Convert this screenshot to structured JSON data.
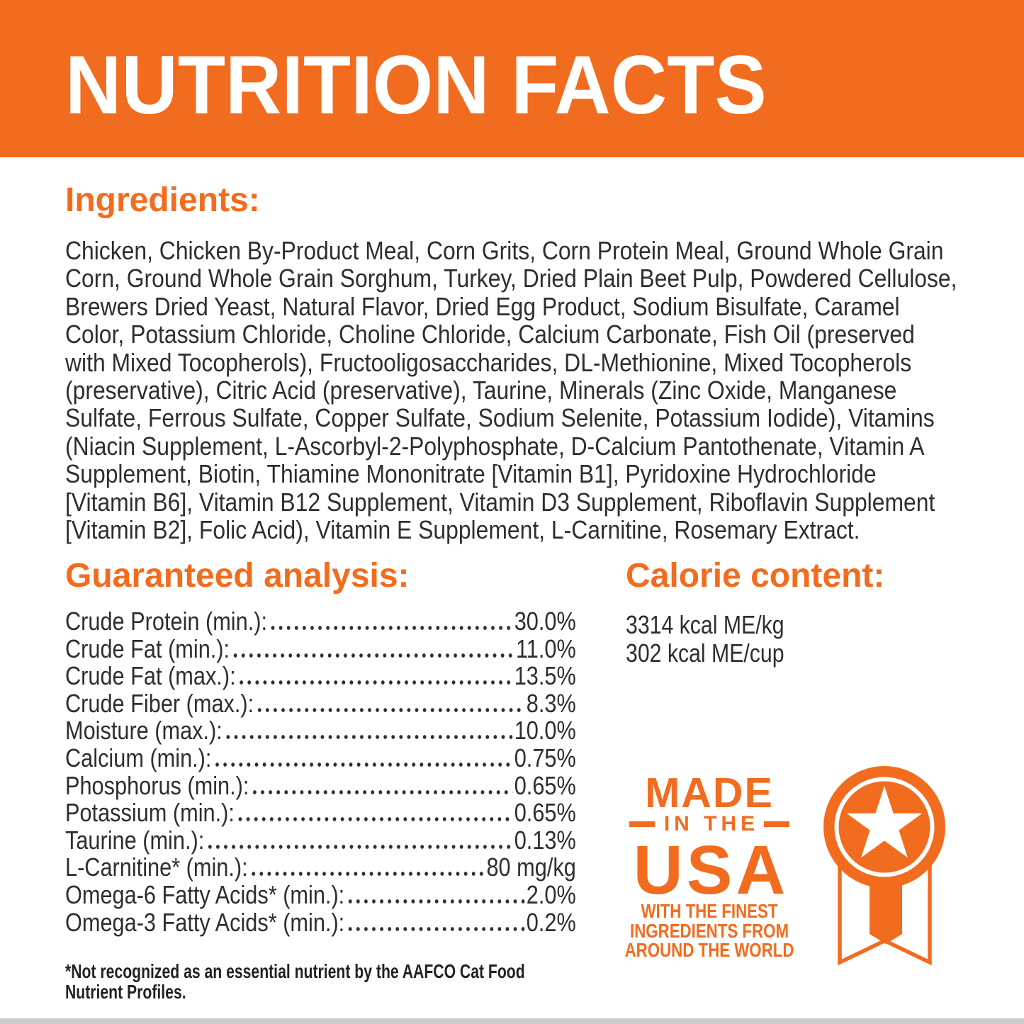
{
  "page": {
    "accent_color": "#F26C1F",
    "text_color": "#2E2E2E"
  },
  "header": {
    "title": "NUTRITION FACTS"
  },
  "ingredients": {
    "heading": "Ingredients:",
    "lines": [
      "Chicken, Chicken By-Product Meal, Corn Grits, Corn Protein Meal, Ground Whole Grain",
      "Corn, Ground Whole Grain Sorghum, Turkey, Dried Plain Beet Pulp, Powdered Cellulose,",
      "Brewers Dried Yeast, Natural Flavor, Dried Egg Product, Sodium Bisulfate, Caramel",
      "Color, Potassium Chloride, Choline Chloride, Calcium Carbonate, Fish Oil (preserved",
      "with Mixed Tocopherols), Fructooligosaccharides, DL-Methionine, Mixed Tocopherols",
      "(preservative), Citric Acid (preservative), Taurine, Minerals (Zinc Oxide, Manganese",
      "Sulfate, Ferrous Sulfate, Copper Sulfate, Sodium Selenite, Potassium Iodide), Vitamins",
      "(Niacin Supplement, L-Ascorbyl-2-Polyphosphate, D-Calcium Pantothenate, Vitamin A",
      "Supplement, Biotin, Thiamine Mononitrate [Vitamin B1], Pyridoxine Hydrochloride",
      "[Vitamin B6], Vitamin B12 Supplement, Vitamin D3 Supplement, Riboflavin Supplement",
      "[Vitamin B2], Folic Acid), Vitamin E Supplement, L-Carnitine, Rosemary Extract."
    ]
  },
  "guaranteed_analysis": {
    "heading": "Guaranteed analysis:",
    "rows": [
      {
        "label": "Crude Protein (min.):",
        "value": "30.0%"
      },
      {
        "label": "Crude Fat (min.):",
        "value": "11.0%"
      },
      {
        "label": "Crude Fat (max.):",
        "value": "13.5%"
      },
      {
        "label": "Crude Fiber (max.):",
        "value": "8.3%"
      },
      {
        "label": "Moisture (max.):",
        "value": "10.0%"
      },
      {
        "label": "Calcium (min.):",
        "value": "0.75%"
      },
      {
        "label": "Phosphorus (min.):",
        "value": "0.65%"
      },
      {
        "label": "Potassium (min.):",
        "value": "0.65%"
      },
      {
        "label": "Taurine (min.):",
        "value": "0.13%"
      },
      {
        "label": "L-Carnitine* (min.):",
        "value": "80 mg/kg"
      },
      {
        "label": "Omega-6 Fatty Acids* (min.):",
        "value": "2.0%"
      },
      {
        "label": "Omega-3 Fatty Acids* (min.):",
        "value": "0.2%"
      }
    ]
  },
  "calorie_content": {
    "heading": "Calorie content:",
    "lines": [
      "3314 kcal ME/kg",
      "302 kcal ME/cup"
    ]
  },
  "made_in_usa": {
    "line1": "MADE",
    "line2": "IN THE",
    "line3": "USA",
    "tagline_lines": [
      "WITH THE FINEST",
      "INGREDIENTS FROM",
      "AROUND THE WORLD"
    ],
    "badge_icon": "star-rosette-ribbon"
  },
  "footnote": {
    "lines": [
      "*Not recognized as an essential nutrient by the AAFCO Cat Food",
      "Nutrient Profiles."
    ]
  }
}
